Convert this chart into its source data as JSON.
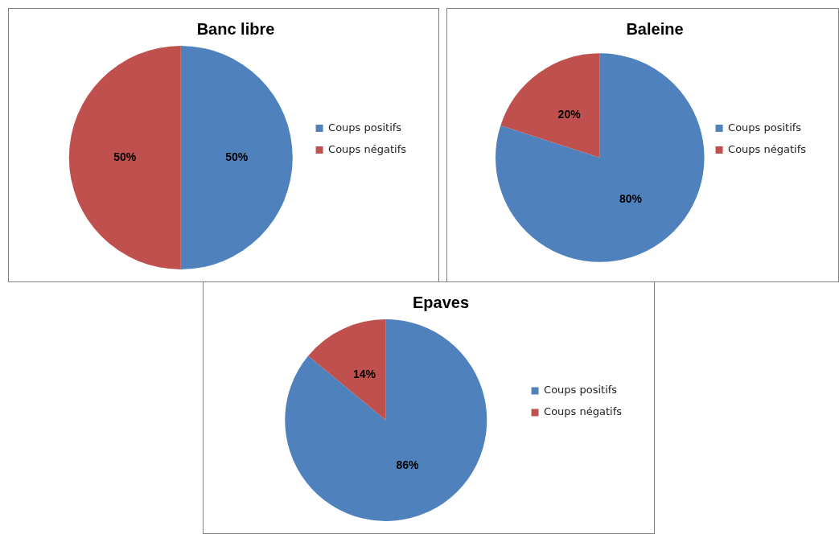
{
  "chart_data": [
    {
      "type": "pie",
      "title": "Banc libre",
      "categories": [
        "Coups positifs",
        "Coups négatifs"
      ],
      "values": [
        50,
        50
      ],
      "value_labels": [
        "50%",
        "50%"
      ],
      "colors": [
        "#4f81bd",
        "#c0504d"
      ],
      "legend": "right"
    },
    {
      "type": "pie",
      "title": "Baleine",
      "categories": [
        "Coups positifs",
        "Coups négatifs"
      ],
      "values": [
        80,
        20
      ],
      "value_labels": [
        "80%",
        "20%"
      ],
      "colors": [
        "#4f81bd",
        "#c0504d"
      ],
      "legend": "right"
    },
    {
      "type": "pie",
      "title": "Epaves",
      "categories": [
        "Coups positifs",
        "Coups négatifs"
      ],
      "values": [
        86,
        14
      ],
      "value_labels": [
        "86%",
        "14%"
      ],
      "colors": [
        "#4f81bd",
        "#c0504d"
      ],
      "legend": "right"
    }
  ]
}
